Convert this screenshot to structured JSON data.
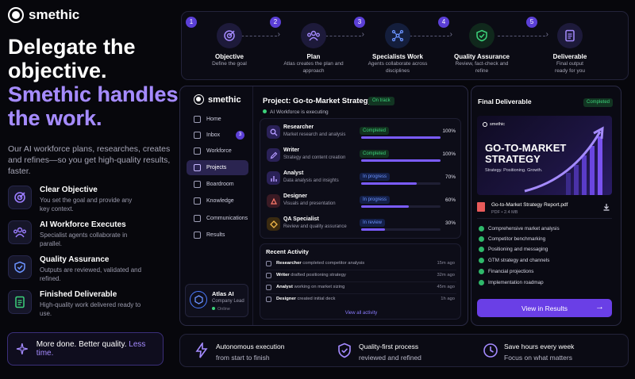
{
  "brand": {
    "name": "smethic"
  },
  "hero": {
    "line1": "Delegate the",
    "line2": "objective.",
    "line3": "Smethic handles",
    "line4": "the work."
  },
  "subtitle": "Our AI workforce plans, researches, creates and refines—so you get high-quality results, faster.",
  "features": [
    {
      "title": "Clear Objective",
      "desc": "You set the goal and provide any key context.",
      "icon": "target-icon"
    },
    {
      "title": "AI Workforce Executes",
      "desc": "Specialist agents collaborate in parallel.",
      "icon": "team-icon"
    },
    {
      "title": "Quality Assurance",
      "desc": "Outputs are reviewed, validated and refined.",
      "icon": "shield-check-icon"
    },
    {
      "title": "Finished Deliverable",
      "desc": "High-quality work delivered ready to use.",
      "icon": "document-icon"
    }
  ],
  "tagline": {
    "text": "More done. Better quality.",
    "accent": "Less time."
  },
  "steps": [
    {
      "num": "1",
      "title": "Objective",
      "desc": "Define the goal",
      "icon": "target-icon"
    },
    {
      "num": "2",
      "title": "Plan",
      "desc": "Atlas creates the plan and approach",
      "icon": "team-icon"
    },
    {
      "num": "3",
      "title": "Specialists Work",
      "desc": "Agents collaborate across disciplines",
      "icon": "network-icon"
    },
    {
      "num": "4",
      "title": "Quality Assurance",
      "desc": "Review, fact-check and refine",
      "icon": "shield-check-icon"
    },
    {
      "num": "5",
      "title": "Deliverable",
      "desc": "Final output ready for you",
      "icon": "document-icon"
    }
  ],
  "sidebar": {
    "items": [
      {
        "label": "Home"
      },
      {
        "label": "Inbox",
        "badge": "3"
      },
      {
        "label": "Workforce"
      },
      {
        "label": "Projects",
        "active": true
      },
      {
        "label": "Boardroom"
      },
      {
        "label": "Knowledge"
      },
      {
        "label": "Communications"
      },
      {
        "label": "Results"
      }
    ],
    "agent": {
      "name": "Atlas AI",
      "role": "Company Lead",
      "status": "Online"
    }
  },
  "project": {
    "title": "Project: Go-to-Market Strategy",
    "status": "On track",
    "exec": "AI Workforce is executing",
    "agents": [
      {
        "name": "Researcher",
        "desc": "Market research and analysis",
        "status": "Completed",
        "kind": "done",
        "progress": 100,
        "pct": "100%"
      },
      {
        "name": "Writer",
        "desc": "Strategy and content creation",
        "status": "Completed",
        "kind": "done",
        "progress": 100,
        "pct": "100%"
      },
      {
        "name": "Analyst",
        "desc": "Data analysis and insights",
        "status": "In progress",
        "kind": "prog",
        "progress": 70,
        "pct": "70%"
      },
      {
        "name": "Designer",
        "desc": "Visuals and presentation",
        "status": "In progress",
        "kind": "prog",
        "progress": 60,
        "pct": "60%"
      },
      {
        "name": "QA Specialist",
        "desc": "Review and quality assurance",
        "status": "In review",
        "kind": "rev",
        "progress": 30,
        "pct": "30%"
      }
    ]
  },
  "activity": {
    "title": "Recent Activity",
    "items": [
      {
        "who": "Researcher",
        "what": "completed competitor analysis",
        "time": "15m ago"
      },
      {
        "who": "Writer",
        "what": "drafted positioning strategy",
        "time": "32m ago"
      },
      {
        "who": "Analyst",
        "what": "working on market sizing",
        "time": "45m ago"
      },
      {
        "who": "Designer",
        "what": "created initial deck",
        "time": "1h ago"
      }
    ],
    "view_all": "View all activity"
  },
  "deliverable": {
    "title": "Final Deliverable",
    "status": "Completed",
    "cover_brand": "smethic",
    "cover_title": "GO-TO-MARKET STRATEGY",
    "cover_sub": "Strategy. Positioning. Growth.",
    "file_name": "Go-to-Market Strategy Report.pdf",
    "file_meta": "PDF • 2.4 MB",
    "checks": [
      "Comprehensive market analysis",
      "Competitor benchmarking",
      "Positioning and messaging",
      "GTM strategy and channels",
      "Financial projections",
      "Implementation roadmap"
    ],
    "button": "View in Results"
  },
  "bottom": [
    {
      "title": "Autonomous execution",
      "desc": "from start to finish",
      "icon": "bolt-icon"
    },
    {
      "title": "Quality-first process",
      "desc": "reviewed and refined",
      "icon": "shield-check-icon"
    },
    {
      "title": "Save hours every week",
      "desc": "Focus on what matters",
      "icon": "clock-icon"
    }
  ],
  "colors": {
    "accent": "#6a3fe6",
    "success": "#3cd27a",
    "info": "#6b93ff",
    "background": "#07070c"
  }
}
